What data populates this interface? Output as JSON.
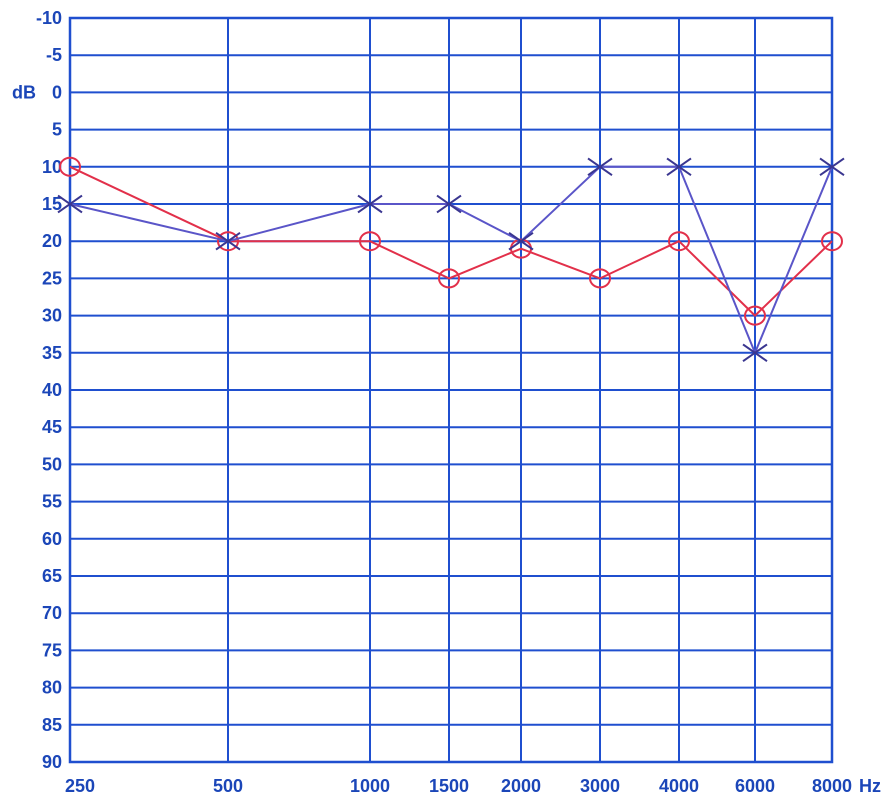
{
  "chart_data": {
    "type": "line",
    "x": [
      "250",
      "500",
      "1000",
      "1500",
      "2000",
      "3000",
      "4000",
      "6000",
      "8000"
    ],
    "x_unit": "Hz",
    "y_ticks": [
      "-10",
      "-5",
      "0",
      "5",
      "10",
      "15",
      "20",
      "25",
      "30",
      "35",
      "40",
      "45",
      "50",
      "55",
      "60",
      "65",
      "70",
      "75",
      "80",
      "85",
      "90"
    ],
    "y_unit": "dB",
    "ylim": [
      -10,
      90
    ],
    "y_inverted": true,
    "grid": true,
    "series": [
      {
        "marker": "o",
        "color": "#e2304a",
        "values": [
          10,
          20,
          20,
          25,
          21,
          25,
          20,
          30,
          20
        ]
      },
      {
        "marker": "x",
        "color": "#5a55c8",
        "values": [
          15,
          20,
          15,
          15,
          20,
          10,
          10,
          35,
          10
        ]
      }
    ]
  }
}
